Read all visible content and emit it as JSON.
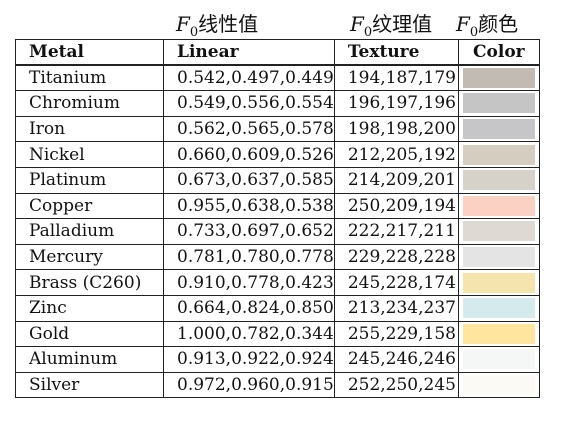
{
  "column_titles": {
    "linear": "F0线性值",
    "texture": "F0纹理值",
    "color": "F0颜色"
  },
  "table": {
    "headers": {
      "metal": "Metal",
      "linear": "Linear",
      "texture": "Texture",
      "color": "Color"
    },
    "rows": [
      {
        "metal": "Titanium",
        "linear": "0.542,0.497,0.449",
        "texture": "194,187,179",
        "color": "#c2bbb3"
      },
      {
        "metal": "Chromium",
        "linear": "0.549,0.556,0.554",
        "texture": "196,197,196",
        "color": "#c4c5c4"
      },
      {
        "metal": "Iron",
        "linear": "0.562,0.565,0.578",
        "texture": "198,198,200",
        "color": "#c6c6c8"
      },
      {
        "metal": "Nickel",
        "linear": "0.660,0.609,0.526",
        "texture": "212,205,192",
        "color": "#d4cdc0"
      },
      {
        "metal": "Platinum",
        "linear": "0.673,0.637,0.585",
        "texture": "214,209,201",
        "color": "#d6d1c9"
      },
      {
        "metal": "Copper",
        "linear": "0.955,0.638,0.538",
        "texture": "250,209,194",
        "color": "#fad1c2"
      },
      {
        "metal": "Palladium",
        "linear": "0.733,0.697,0.652",
        "texture": "222,217,211",
        "color": "#ded9d3"
      },
      {
        "metal": "Mercury",
        "linear": "0.781,0.780,0.778",
        "texture": "229,228,228",
        "color": "#e5e4e4"
      },
      {
        "metal": "Brass (C260)",
        "linear": "0.910,0.778,0.423",
        "texture": "245,228,174",
        "color": "#f5e4ae"
      },
      {
        "metal": "Zinc",
        "linear": "0.664,0.824,0.850",
        "texture": "213,234,237",
        "color": "#d5eaed"
      },
      {
        "metal": "Gold",
        "linear": "1.000,0.782,0.344",
        "texture": "255,229,158",
        "color": "#ffe59e"
      },
      {
        "metal": "Aluminum",
        "linear": "0.913,0.922,0.924",
        "texture": "245,246,246",
        "color": "#f5f6f6"
      },
      {
        "metal": "Silver",
        "linear": "0.972,0.960,0.915",
        "texture": "252,250,245",
        "color": "#fcfaf5"
      }
    ]
  }
}
